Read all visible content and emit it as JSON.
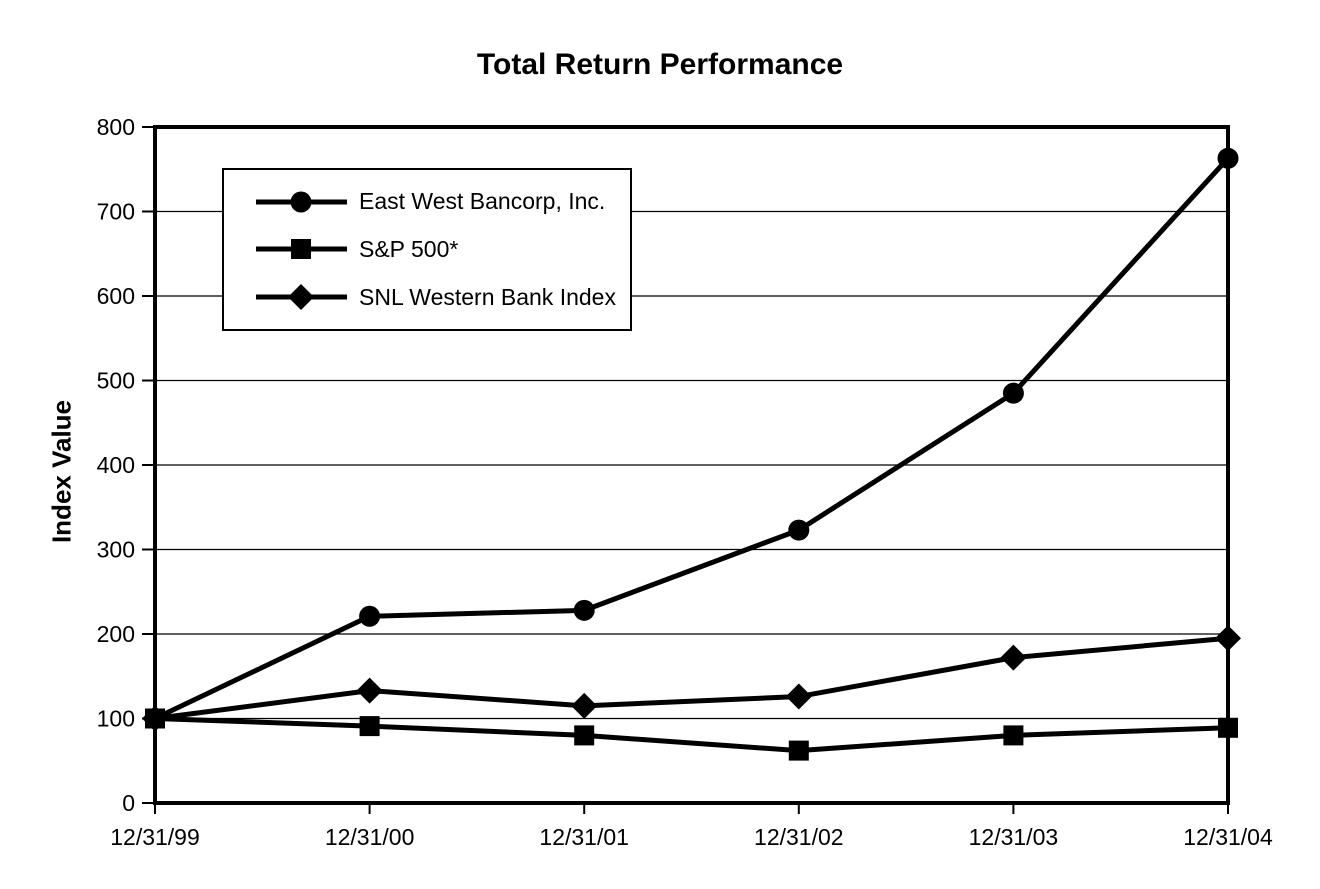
{
  "chart_data": {
    "type": "line",
    "title": "Total Return Performance",
    "xlabel": "",
    "ylabel": "Index Value",
    "categories": [
      "12/31/99",
      "12/31/00",
      "12/31/01",
      "12/31/02",
      "12/31/03",
      "12/31/04"
    ],
    "series": [
      {
        "name": "East West Bancorp, Inc.",
        "marker": "circle",
        "values": [
          100,
          221,
          228,
          323,
          485,
          763
        ]
      },
      {
        "name": "S&P 500*",
        "marker": "square",
        "values": [
          100,
          91,
          80,
          62,
          80,
          89
        ]
      },
      {
        "name": "SNL Western Bank Index",
        "marker": "diamond",
        "values": [
          100,
          133,
          115,
          126,
          172,
          195
        ]
      }
    ],
    "ylim": [
      0,
      800
    ],
    "yticks": [
      0,
      100,
      200,
      300,
      400,
      500,
      600,
      700,
      800
    ],
    "grid": true,
    "legend_position": "upper-left-inside",
    "line_color": "#000000",
    "grid_color": "#000000",
    "background": "#ffffff"
  }
}
